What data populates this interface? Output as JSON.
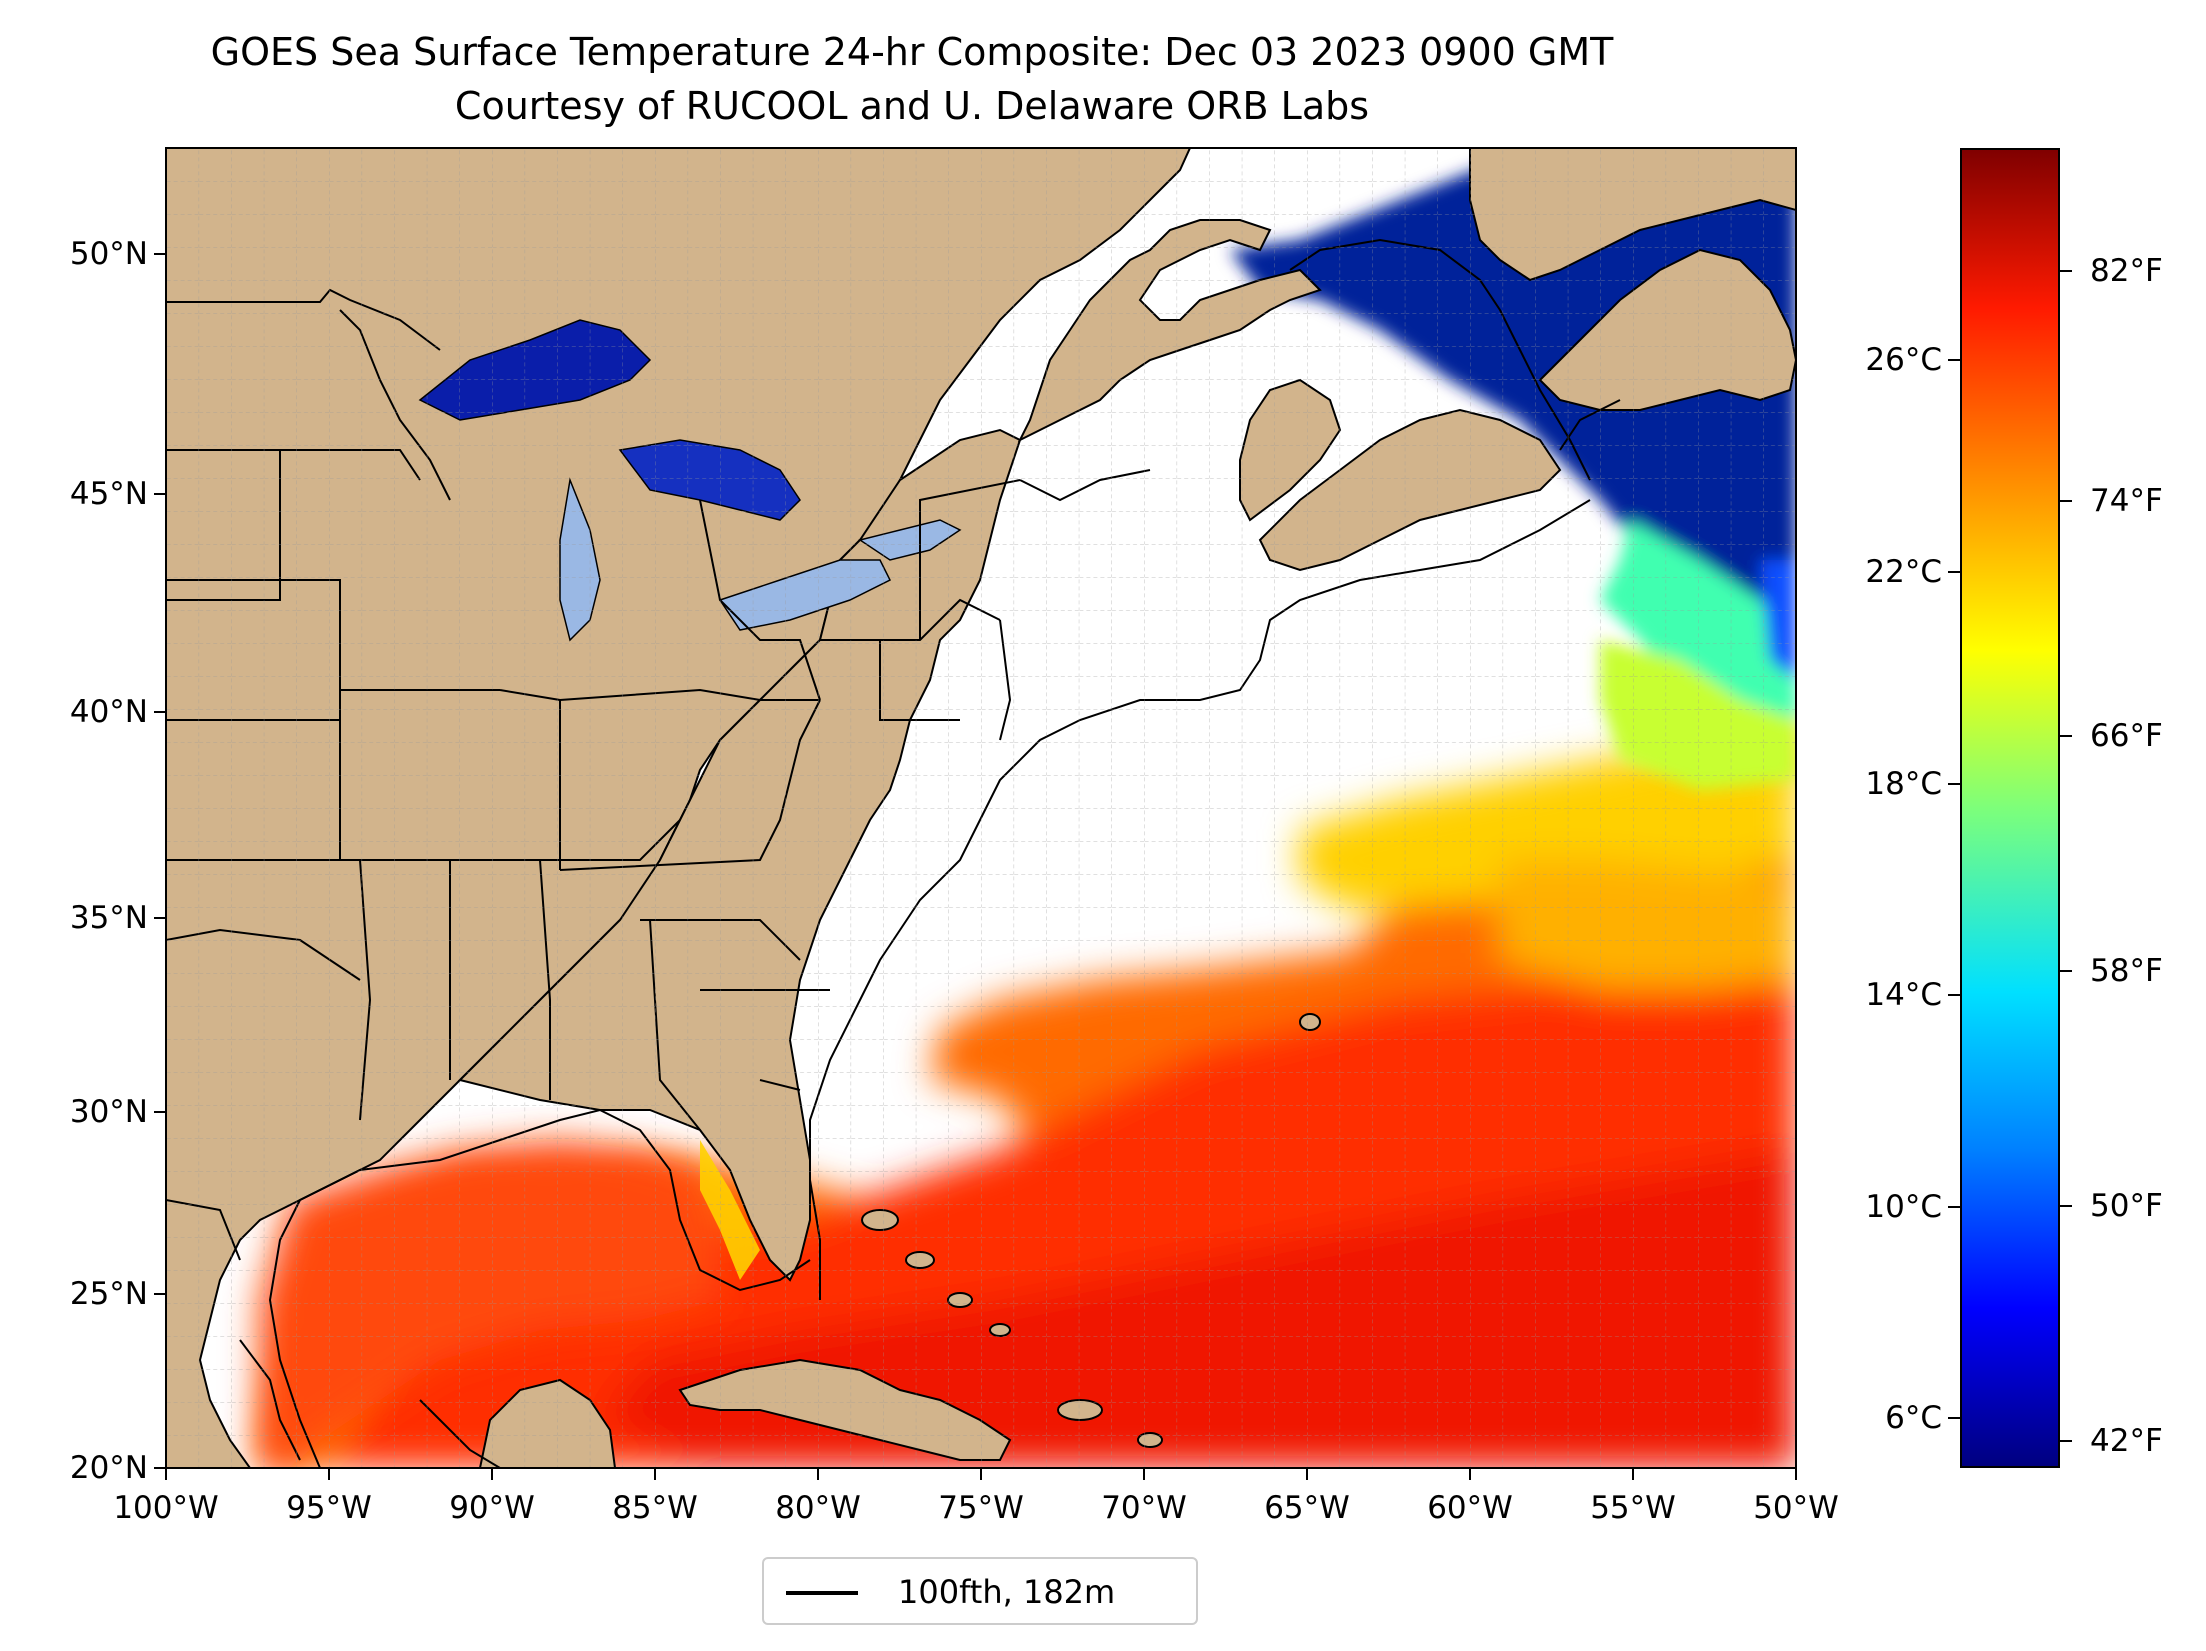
{
  "title": "GOES Sea Surface Temperature 24-hr Composite: Dec 03 2023 0900 GMT",
  "subtitle": "Courtesy of RUCOOL and U. Delaware ORB Labs",
  "lat_ticks": [
    "50°N",
    "45°N",
    "40°N",
    "35°N",
    "30°N",
    "25°N",
    "20°N"
  ],
  "lon_ticks": [
    "100°W",
    "95°W",
    "90°W",
    "85°W",
    "80°W",
    "75°W",
    "70°W",
    "65°W",
    "60°W",
    "55°W",
    "50°W"
  ],
  "map_extent": {
    "lon_min": -100,
    "lon_max": -50,
    "lat_min": 20,
    "lat_max": 52.6
  },
  "colorbar": {
    "celsius_ticks": [
      "26°C",
      "22°C",
      "18°C",
      "14°C",
      "10°C",
      "6°C"
    ],
    "fahrenheit_ticks": [
      "82°F",
      "74°F",
      "66°F",
      "58°F",
      "50°F",
      "42°F"
    ],
    "colormap": "jet",
    "colors": [
      "#000080",
      "#0000ff",
      "#00e0ff",
      "#7dff7a",
      "#ffff00",
      "#ff8c00",
      "#ff1a00",
      "#800000"
    ]
  },
  "legend": {
    "label": "100fth, 182m",
    "line_color": "#000000"
  },
  "colors": {
    "land": "#d2b48c",
    "ocean_nodata": "#ffffff",
    "lakes": "#9ab8e4",
    "borders": "#000000"
  }
}
